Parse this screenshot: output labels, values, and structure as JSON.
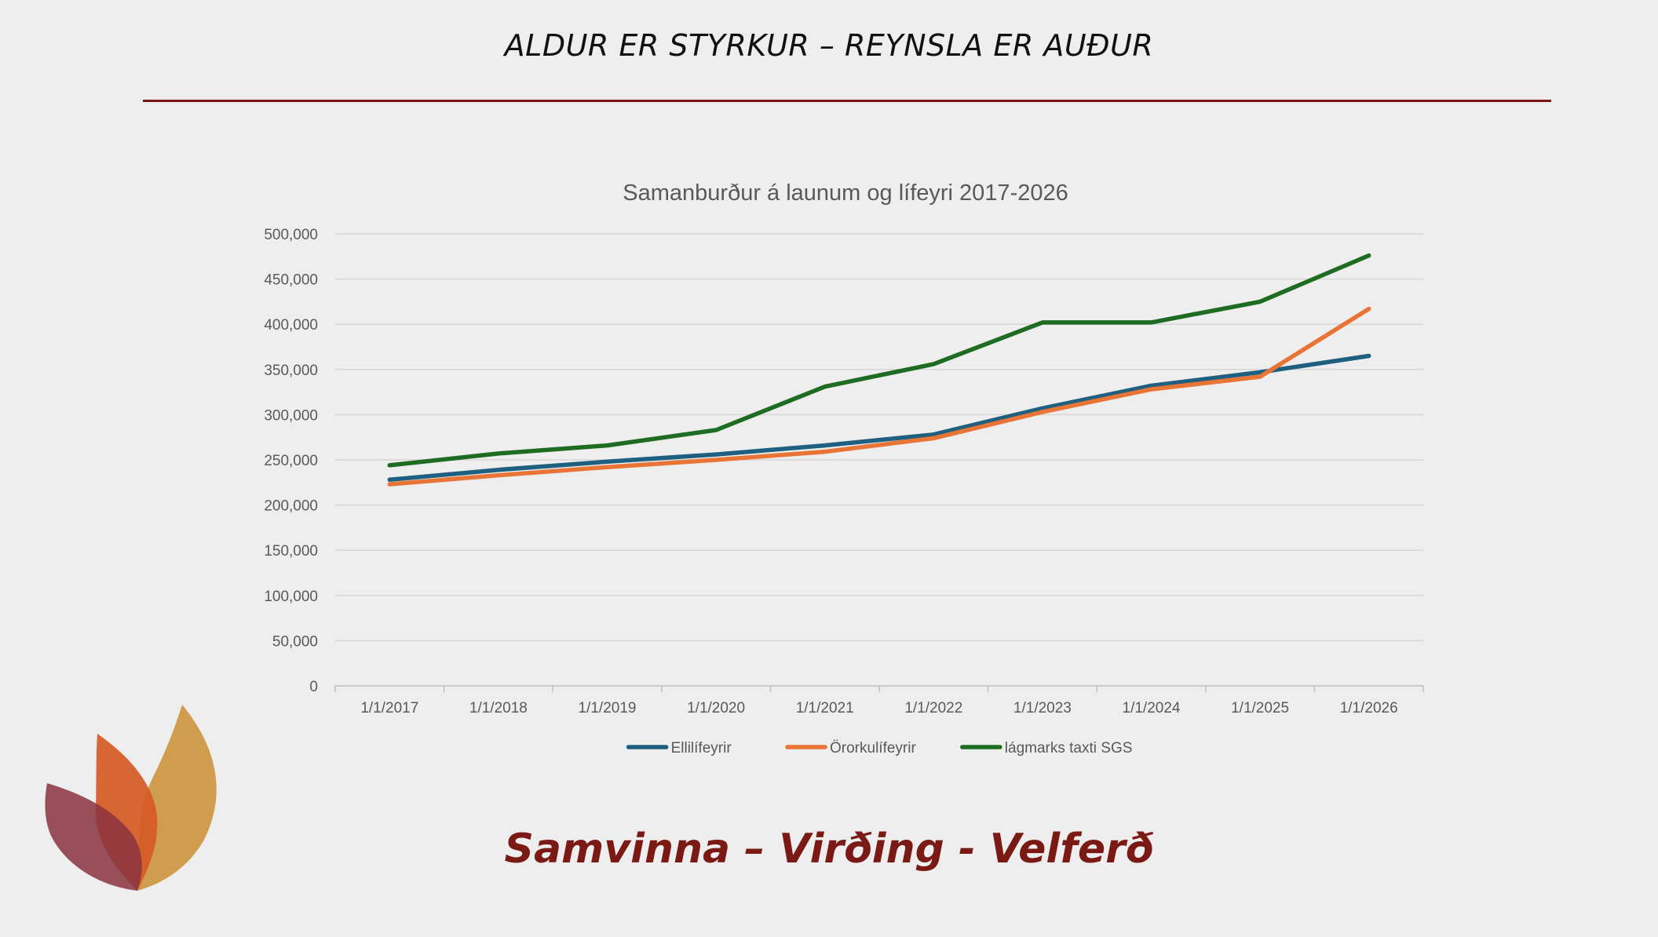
{
  "slide": {
    "header_title": "ALDUR ER STYRKUR – REYNSLA ER AUÐUR",
    "footer_motto": "Samvinna – Virðing - Velferð"
  },
  "colors": {
    "accent_rule": "#7a1616",
    "motto": "#7b1a14",
    "grid": "#d6d6d6",
    "axis_text": "#595959"
  },
  "chart_data": {
    "type": "line",
    "title": "Samanburður á launum og lífeyri 2017-2026",
    "xlabel": "",
    "ylabel": "",
    "categories": [
      "1/1/2017",
      "1/1/2018",
      "1/1/2019",
      "1/1/2020",
      "1/1/2021",
      "1/1/2022",
      "1/1/2023",
      "1/1/2024",
      "1/1/2025",
      "1/1/2026"
    ],
    "ylim": [
      0,
      500000
    ],
    "yticks": [
      0,
      50000,
      100000,
      150000,
      200000,
      250000,
      300000,
      350000,
      400000,
      450000,
      500000
    ],
    "ytick_labels": [
      "0",
      "50,000",
      "100,000",
      "150,000",
      "200,000",
      "250,000",
      "300,000",
      "350,000",
      "400,000",
      "450,000",
      "500,000"
    ],
    "grid": true,
    "legend_position": "bottom",
    "series": [
      {
        "name": "Ellilífeyrir",
        "color": "#1f5f80",
        "values": [
          228000,
          239000,
          248000,
          256000,
          266000,
          278000,
          307000,
          332000,
          347000,
          365000
        ]
      },
      {
        "name": "Örorkulífeyrir",
        "color": "#e87435",
        "values": [
          223000,
          233000,
          242000,
          250000,
          259000,
          274000,
          303000,
          328000,
          342000,
          417000
        ]
      },
      {
        "name": "lágmarks taxti SGS",
        "color": "#1e6b22",
        "values": [
          244000,
          257000,
          266000,
          283000,
          331000,
          356000,
          402000,
          402000,
          425000,
          476000
        ]
      }
    ]
  },
  "logo": {
    "icon": "flame-leaves-icon"
  }
}
